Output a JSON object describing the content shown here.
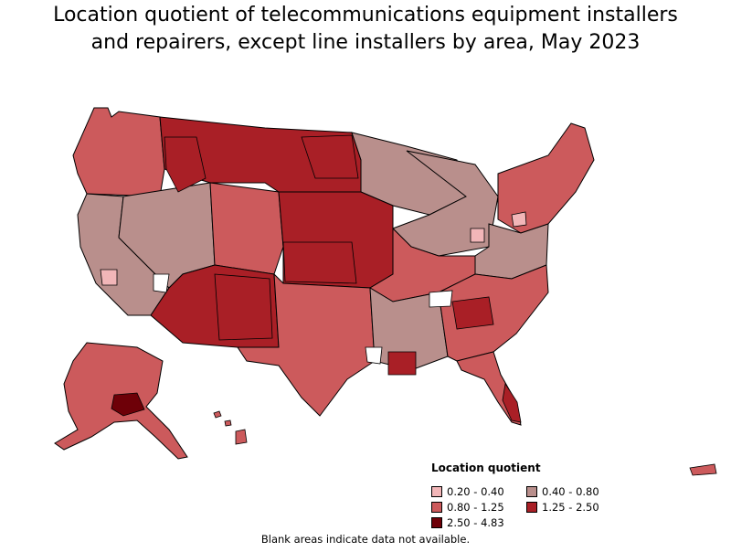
{
  "title": {
    "line1": "Location quotient of telecommunications equipment installers",
    "line2": "and repairers, except line installers by area, May 2023"
  },
  "legend": {
    "heading": "Location quotient",
    "items": [
      {
        "label": "0.20 - 0.40",
        "color": "#f2b6b8"
      },
      {
        "label": "0.40 - 0.80",
        "color": "#b98f8c"
      },
      {
        "label": "0.80 - 1.25",
        "color": "#cc5a5c"
      },
      {
        "label": "1.25 - 2.50",
        "color": "#a91f26"
      },
      {
        "label": "2.50 - 4.83",
        "color": "#6e0008"
      }
    ]
  },
  "footnote": "Blank areas indicate data not available.",
  "colors": {
    "border": "#000000",
    "blank": "#ffffff"
  }
}
